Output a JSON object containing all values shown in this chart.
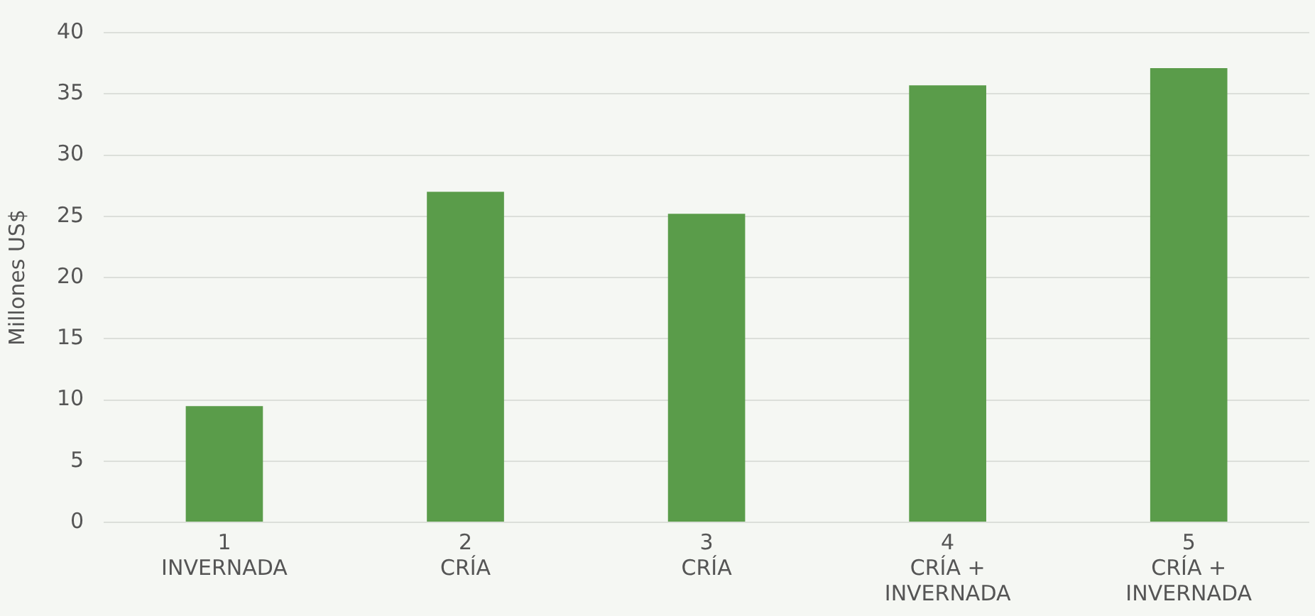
{
  "chart_data": {
    "type": "bar",
    "ylabel": "Millones US$",
    "categories": [
      "1\nINVERNADA",
      "2\nCRÍA",
      "3\nCRÍA",
      "4\nCRÍA +\nINVERNADA",
      "5\nCRÍA +\nINVERNADA"
    ],
    "values": [
      9.5,
      27,
      25.2,
      35.7,
      37.1
    ],
    "color": "#5a9c4a",
    "ylim": [
      0,
      40
    ],
    "yticks": [
      0,
      5,
      10,
      15,
      20,
      25,
      30,
      35,
      40
    ],
    "grid": "y"
  }
}
